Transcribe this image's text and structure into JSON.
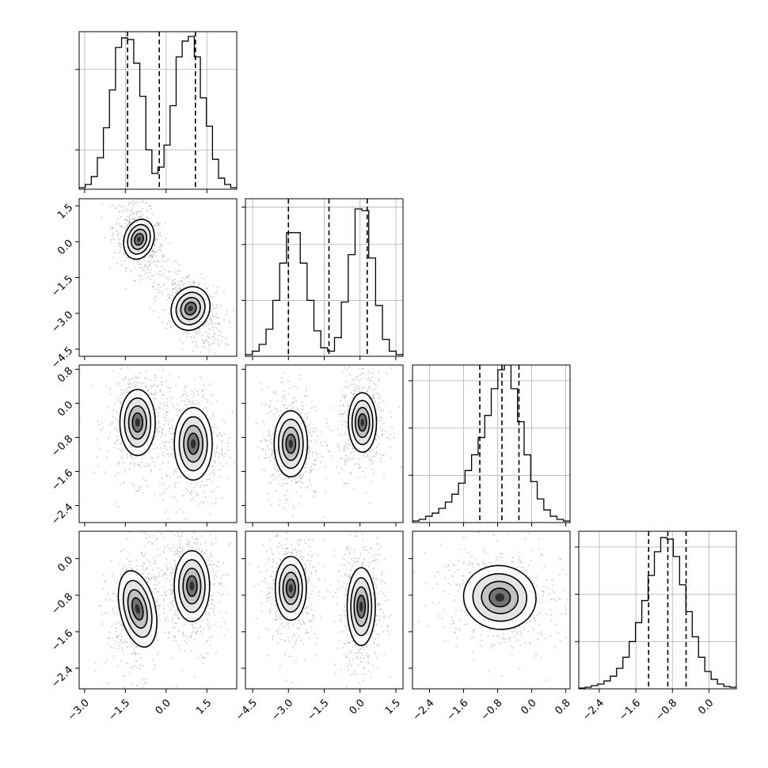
{
  "chart_data": {
    "type": "corner",
    "description_free": true,
    "grid": true,
    "quantile_line_style": "dashed",
    "quantiles": [
      [
        -1.42,
        -0.25,
        1.08
      ],
      [
        -3.0,
        -1.3,
        0.3
      ],
      [
        -1.22,
        -0.7,
        -0.3
      ],
      [
        -1.32,
        -0.9,
        -0.5
      ]
    ],
    "ranges": [
      [
        -3.2,
        2.6
      ],
      [
        -4.8,
        1.8
      ],
      [
        -2.8,
        0.9
      ],
      [
        -2.85,
        0.6
      ]
    ],
    "tick_labels": [
      [
        "−3.0",
        "−1.5",
        "0.0",
        "1.5"
      ],
      [
        "−4.5",
        "−3.0",
        "−1.5",
        "0.0",
        "1.5"
      ],
      [
        "−2.4",
        "−1.6",
        "−0.8",
        "0.0",
        "0.8"
      ],
      [
        "−2.4",
        "−1.6",
        "−0.8",
        "0.0"
      ]
    ],
    "tick_values": [
      [
        -3.0,
        -1.5,
        0.0,
        1.5
      ],
      [
        -4.5,
        -3.0,
        -1.5,
        0.0,
        1.5
      ],
      [
        -2.4,
        -1.6,
        -0.8,
        0.0,
        0.8
      ],
      [
        -2.4,
        -1.6,
        -0.8,
        0.0
      ]
    ],
    "histograms": [
      [
        0.01,
        0.03,
        0.08,
        0.2,
        0.39,
        0.63,
        0.9,
        0.96,
        0.95,
        0.8,
        0.59,
        0.25,
        0.1,
        0.14,
        0.28,
        0.53,
        0.84,
        0.94,
        0.97,
        0.84,
        0.58,
        0.4,
        0.19,
        0.07,
        0.03,
        0.01
      ],
      [
        0.01,
        0.03,
        0.07,
        0.16,
        0.33,
        0.55,
        0.73,
        0.73,
        0.55,
        0.33,
        0.15,
        0.05,
        0.03,
        0.11,
        0.32,
        0.6,
        0.87,
        0.86,
        0.58,
        0.3,
        0.1,
        0.03,
        0.01
      ],
      [
        0.01,
        0.02,
        0.04,
        0.06,
        0.09,
        0.13,
        0.18,
        0.25,
        0.33,
        0.43,
        0.54,
        0.68,
        0.85,
        0.97,
        1.0,
        0.85,
        0.64,
        0.43,
        0.26,
        0.15,
        0.08,
        0.04,
        0.02,
        0.01
      ],
      [
        0.005,
        0.01,
        0.02,
        0.03,
        0.05,
        0.08,
        0.13,
        0.2,
        0.3,
        0.42,
        0.56,
        0.72,
        0.87,
        0.96,
        0.95,
        0.84,
        0.66,
        0.49,
        0.33,
        0.2,
        0.11,
        0.06,
        0.03,
        0.015,
        0.01
      ]
    ],
    "hist_ymax": [
      1.0,
      0.93,
      1.0,
      1.0
    ],
    "hist_yticks": [
      [
        0.25,
        0.76
      ],
      [
        0.33,
        0.66,
        0.88
      ],
      [
        0.3,
        0.6,
        0.9
      ],
      [
        0.3,
        0.6,
        0.9
      ]
    ],
    "modes": {
      "1_0": [
        [
          -1.0,
          0.1,
          0.35,
          0.55,
          -0.35
        ],
        [
          0.9,
          -2.8,
          0.45,
          0.6,
          -0.45
        ]
      ],
      "2_0": [
        [
          -1.05,
          -0.45,
          0.42,
          0.5,
          0
        ],
        [
          1.0,
          -0.95,
          0.45,
          0.55,
          0
        ]
      ],
      "2_1": [
        [
          -2.9,
          -0.95,
          0.45,
          0.5,
          0
        ],
        [
          0.1,
          -0.45,
          0.38,
          0.45,
          0
        ]
      ],
      "3_0": [
        [
          -1.05,
          -1.1,
          0.42,
          0.55,
          0.25
        ],
        [
          0.95,
          -0.6,
          0.42,
          0.5,
          0
        ]
      ],
      "3_1": [
        [
          -2.9,
          -0.65,
          0.42,
          0.45,
          0
        ],
        [
          0.05,
          -1.05,
          0.38,
          0.55,
          0
        ]
      ],
      "3_2": [
        [
          -0.75,
          -0.85,
          0.55,
          0.45,
          -0.15
        ]
      ]
    }
  }
}
